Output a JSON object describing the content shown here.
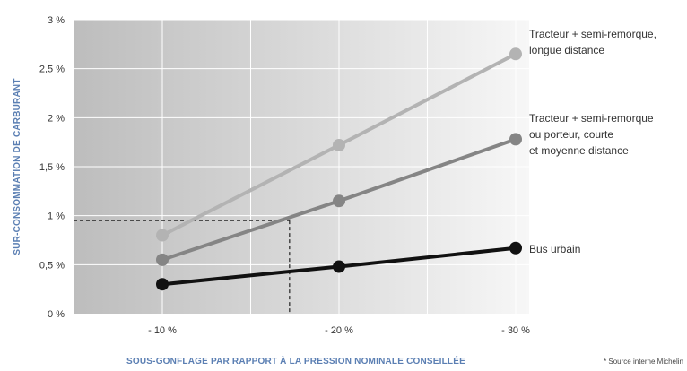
{
  "chart_data": {
    "type": "line",
    "ylabel": "SUR-CONSOMMATION DE CARBURANT",
    "xlabel": "SOUS-GONFLAGE PAR RAPPORT À LA PRESSION NOMINALE CONSEILLÉE",
    "source": "* Source interne Michelin",
    "categories": [
      "- 10 %",
      "- 20 %",
      "- 30 %"
    ],
    "x": [
      -10,
      -20,
      -30
    ],
    "ylim": [
      0,
      3
    ],
    "yticks": [
      0,
      0.5,
      1,
      1.5,
      2,
      2.5,
      3
    ],
    "ytick_labels": [
      "0 %",
      "0,5 %",
      "1 %",
      "1,5 %",
      "2 %",
      "2,5 %",
      "3 %"
    ],
    "grid": true,
    "series": [
      {
        "name": "Tracteur + semi-remorque, longue distance",
        "label_lines": [
          "Tracteur + semi-remorque,",
          "longue distance"
        ],
        "values": [
          0.8,
          1.72,
          2.65
        ],
        "color": "#b3b3b3"
      },
      {
        "name": "Tracteur + semi-remorque ou porteur, courte et moyenne distance",
        "label_lines": [
          "Tracteur + semi-remorque",
          "ou porteur, courte",
          "et moyenne distance"
        ],
        "values": [
          0.55,
          1.15,
          1.78
        ],
        "color": "#858585"
      },
      {
        "name": "Bus urbain",
        "label_lines": [
          "Bus urbain"
        ],
        "values": [
          0.3,
          0.48,
          0.67
        ],
        "color": "#111111"
      }
    ],
    "annotation": {
      "type": "dashed-guide",
      "x": -17.2,
      "y": 0.95
    }
  }
}
